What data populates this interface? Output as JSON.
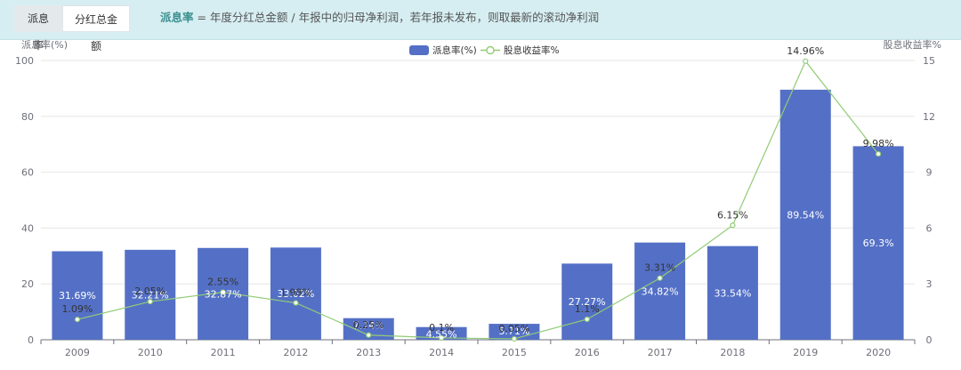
{
  "tabs": [
    {
      "label": "派息率",
      "active": true
    },
    {
      "label": "分红总金额",
      "active": false
    }
  ],
  "definition": {
    "term": "派息率",
    "text": " = 年度分红总金额 / 年报中的归母净利润，若年报未发布，则取最新的滚动净利润"
  },
  "colors": {
    "bar": "#5470c6",
    "line": "#91cc75",
    "axis": "#6e7079",
    "grid": "#e6e6e6"
  },
  "chart_data": {
    "type": "bar",
    "categories": [
      "2009",
      "2010",
      "2011",
      "2012",
      "2013",
      "2014",
      "2015",
      "2016",
      "2017",
      "2018",
      "2019",
      "2020"
    ],
    "y_left": {
      "label": "派息率(%)",
      "range": [
        0,
        100
      ],
      "ticks": [
        "0",
        "20",
        "40",
        "60",
        "80",
        "100"
      ]
    },
    "y_right": {
      "label": "股息收益率%",
      "range": [
        0,
        15
      ],
      "ticks": [
        "0",
        "3",
        "6",
        "9",
        "12",
        "15"
      ]
    },
    "grid": true,
    "legend_position": "top-center",
    "series": [
      {
        "name": "派息率(%)",
        "type": "bar",
        "axis": "left",
        "values": [
          31.69,
          32.21,
          32.87,
          33.02,
          7.74,
          4.55,
          5.71,
          27.27,
          34.82,
          33.54,
          89.54,
          69.3
        ],
        "labels": [
          "31.69%",
          "32.21%",
          "32.87%",
          "33.02%",
          "7.74%",
          "4.55%",
          "5.71%",
          "27.27%",
          "34.82%",
          "33.54%",
          "89.54%",
          "69.3%"
        ]
      },
      {
        "name": "股息收益率%",
        "type": "line",
        "axis": "right",
        "values": [
          1.09,
          2.05,
          2.55,
          1.98,
          0.25,
          0.1,
          0.05,
          1.1,
          3.31,
          6.15,
          14.96,
          9.98
        ],
        "labels": [
          "1.09%",
          "2.05%",
          "2.55%",
          "1.98%",
          "0.25%",
          "0.1%",
          "0.05%",
          "1.1%",
          "3.31%",
          "6.15%",
          "14.96%",
          "9.98%"
        ]
      }
    ]
  }
}
